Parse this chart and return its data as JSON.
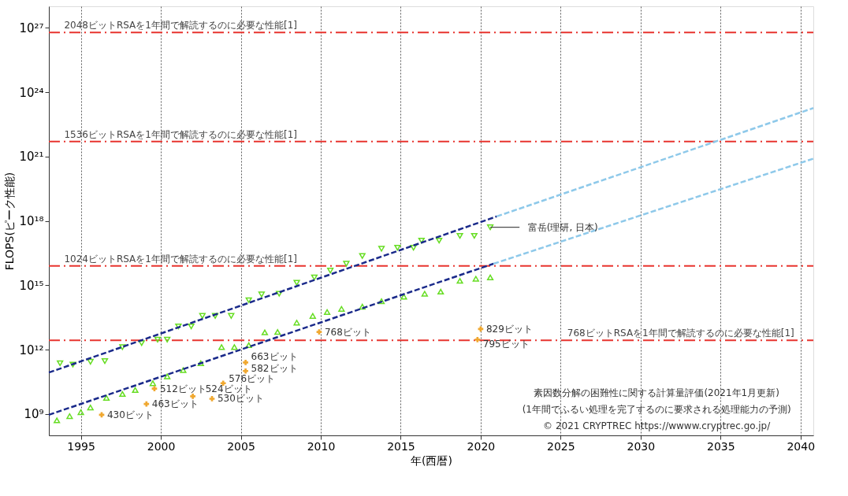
{
  "chart_data": {
    "type": "scatter",
    "xlabel": "年(西暦)",
    "ylabel": "FLOPS(ピーク性能)",
    "xlim": [
      1993,
      2040.8
    ],
    "xticks": [
      1995,
      2000,
      2005,
      2010,
      2015,
      2020,
      2025,
      2030,
      2035,
      2040
    ],
    "ylim": [
      100000000.0,
      1e+28
    ],
    "log": "y",
    "yticks": [
      {
        "value": 1000000000.0,
        "label": "10⁹"
      },
      {
        "value": 1000000000000.0,
        "label": "10¹²"
      },
      {
        "value": 1000000000000000.0,
        "label": "10¹⁵"
      },
      {
        "value": 1e+18,
        "label": "10¹⁸"
      },
      {
        "value": 1e+21,
        "label": "10²¹"
      },
      {
        "value": 1e+24,
        "label": "10²⁴"
      },
      {
        "value": 1e+27,
        "label": "10²⁷"
      }
    ],
    "grid": "x",
    "series": [
      {
        "type": "scatter",
        "marker": "triangle-down",
        "color": "#66dd22",
        "x": [
          1993.7,
          1994.5,
          1995.6,
          1996.5,
          1997.6,
          1998.8,
          1999.8,
          2000.4,
          2001.1,
          2001.9,
          2002.6,
          2003.4,
          2004.4,
          2005.5,
          2006.3,
          2007.4,
          2008.5,
          2009.6,
          2010.6,
          2011.6,
          2012.6,
          2013.8,
          2014.8,
          2015.8,
          2016.3,
          2017.4,
          2018.7,
          2019.6,
          2020.6
        ],
        "values": [
          230000000000.0,
          200000000000.0,
          270000000000.0,
          290000000000.0,
          1300000000000.0,
          2000000000000.0,
          2900000000000.0,
          2900000000000.0,
          12000000000000.0,
          12000000000000.0,
          37000000000000.0,
          37000000000000.0,
          37000000000000.0,
          200000000000000.0,
          370000000000000.0,
          400000000000000.0,
          1300000000000000.0,
          2300000000000000.0,
          4800000000000000.0,
          1e+16,
          2.3e+16,
          5e+16,
          5.6e+16,
          5.6e+16,
          1.2e+17,
          1.2e+17,
          2e+17,
          2e+17,
          5e+17
        ]
      },
      {
        "type": "scatter",
        "marker": "triangle",
        "color": "#66dd22",
        "x": [
          1993.5,
          1994.3,
          1995.0,
          1995.6,
          1996.6,
          1997.6,
          1998.4,
          1999.5,
          2000.4,
          2001.4,
          2002.5,
          2003.8,
          2004.6,
          2005.5,
          2006.5,
          2007.3,
          2008.5,
          2009.5,
          2010.4,
          2011.3,
          2012.6,
          2013.8,
          2015.2,
          2016.5,
          2017.5,
          2018.7,
          2019.7,
          2020.6
        ],
        "values": [
          500000000.0,
          790000000.0,
          1200000000.0,
          2000000000.0,
          5600000000.0,
          8500000000.0,
          13000000000.0,
          27000000000.0,
          56000000000.0,
          110000000000.0,
          230000000000.0,
          1300000000000.0,
          1300000000000.0,
          1600000000000.0,
          6300000000000.0,
          6600000000000.0,
          18000000000000.0,
          37000000000000.0,
          56000000000000.0,
          79000000000000.0,
          100000000000000.0,
          180000000000000.0,
          290000000000000.0,
          400000000000000.0,
          500000000000000.0,
          1600000000000000.0,
          2000000000000000.0,
          2300000000000000.0
        ]
      },
      {
        "type": "line",
        "line_style": "dashed",
        "color": "#1a2a8a",
        "x": [
          1993,
          2021
        ],
        "values": [
          85000000000.0,
          1.6e+18
        ]
      },
      {
        "type": "line",
        "line_style": "dashed",
        "color": "#1a2a8a",
        "x": [
          1993,
          2020.8
        ],
        "values": [
          910000000.0,
          1e+16
        ]
      },
      {
        "type": "line",
        "line_style": "dashed",
        "color": "#8ec9ea",
        "x": [
          2021,
          2040.8
        ],
        "values": [
          1.6e+18,
          1.8e+23
        ]
      },
      {
        "type": "line",
        "line_style": "dashed",
        "color": "#8ec9ea",
        "x": [
          2020.8,
          2040.8
        ],
        "values": [
          1e+16,
          7.9e+20
        ]
      },
      {
        "type": "scatter",
        "marker": "cross",
        "color": "#f0a830",
        "x": [
          1996.3,
          1999.1,
          1999.6,
          2002.0,
          2003.2,
          2003.9,
          2005.3,
          2005.3,
          2009.9,
          2020.0,
          2019.8
        ],
        "values": [
          910000000.0,
          2900000000.0,
          15000000000.0,
          6600000000.0,
          5100000000.0,
          27000000000.0,
          100000000000.0,
          250000000000.0,
          6600000000000.0,
          9100000000000.0,
          2900000000000.0
        ]
      }
    ],
    "ref_lines": [
      {
        "axis": "y",
        "value": 6e+26,
        "label": "2048ビットRSAを1年間で解読するのに必要な性能[1]",
        "color": "#e8342f",
        "line_style": "dashdot"
      },
      {
        "axis": "y",
        "value": 5e+21,
        "label": "1536ビットRSAを1年間で解読するのに必要な性能[1]",
        "color": "#e8342f",
        "line_style": "dashdot"
      },
      {
        "axis": "y",
        "value": 8000000000000000.0,
        "label": "1024ビットRSAを1年間で解読するのに必要な性能[1]",
        "color": "#e8342f",
        "line_style": "dashdot"
      },
      {
        "axis": "y",
        "value": 2700000000000.0,
        "label": "768ビットRSAを1年間で解読するのに必要な性能[1]",
        "color": "#e8342f",
        "line_style": "dashdot"
      }
    ],
    "annotations": [
      {
        "text": "富岳(理研, 日本)",
        "x": 2020.6,
        "y": 5e+17
      },
      {
        "text": "430ビット",
        "x": 1996.3,
        "y": 910000000.0
      },
      {
        "text": "463ビット",
        "x": 1999.1,
        "y": 2900000000.0
      },
      {
        "text": "512ビット",
        "x": 1999.6,
        "y": 15000000000.0
      },
      {
        "text": "524ビット",
        "x": 2002.0,
        "y": 6600000000.0
      },
      {
        "text": "530ビット",
        "x": 2003.2,
        "y": 5100000000.0
      },
      {
        "text": "576ビット",
        "x": 2003.9,
        "y": 27000000000.0
      },
      {
        "text": "582ビット",
        "x": 2005.3,
        "y": 100000000000.0
      },
      {
        "text": "663ビット",
        "x": 2005.3,
        "y": 250000000000.0
      },
      {
        "text": "768ビット",
        "x": 2009.9,
        "y": 6600000000000.0
      },
      {
        "text": "829ビット",
        "x": 2020.0,
        "y": 9100000000000.0
      },
      {
        "text": "795ビット",
        "x": 2019.8,
        "y": 2900000000000.0
      },
      "素因数分解の困難性に関する計算量評価(2021年1月更新)",
      "(1年間でふるい処理を完了するのに要求される処理能力の予測)",
      "© 2021 CRYPTREC https://wwww.cryptrec.go.jp/"
    ]
  }
}
